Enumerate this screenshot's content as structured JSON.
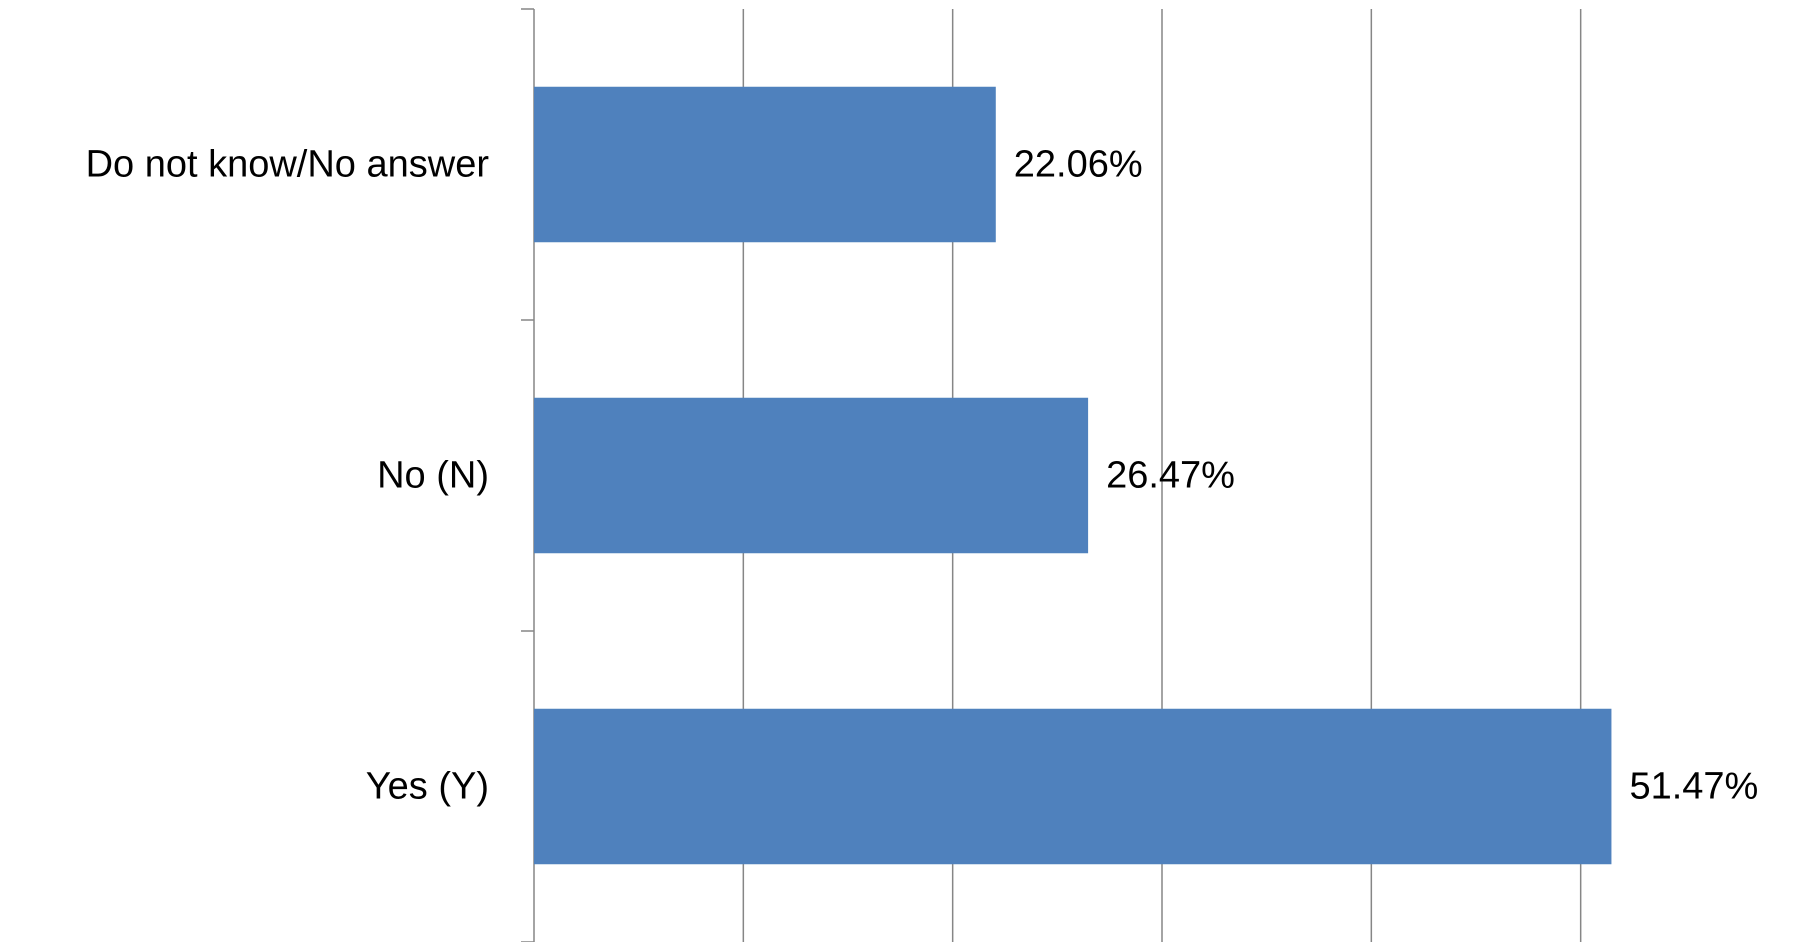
{
  "chart_data": {
    "type": "hbar",
    "categories": [
      "Do not know/No answer",
      "No (N)",
      "Yes (Y)"
    ],
    "values": [
      22.06,
      26.47,
      51.47
    ],
    "value_labels": [
      "22.06%",
      "26.47%",
      "51.47%"
    ],
    "color": "#4f81bd",
    "xlim": [
      0,
      60
    ],
    "xticks": [
      0,
      10,
      20,
      30,
      40,
      50
    ],
    "grid": true
  }
}
